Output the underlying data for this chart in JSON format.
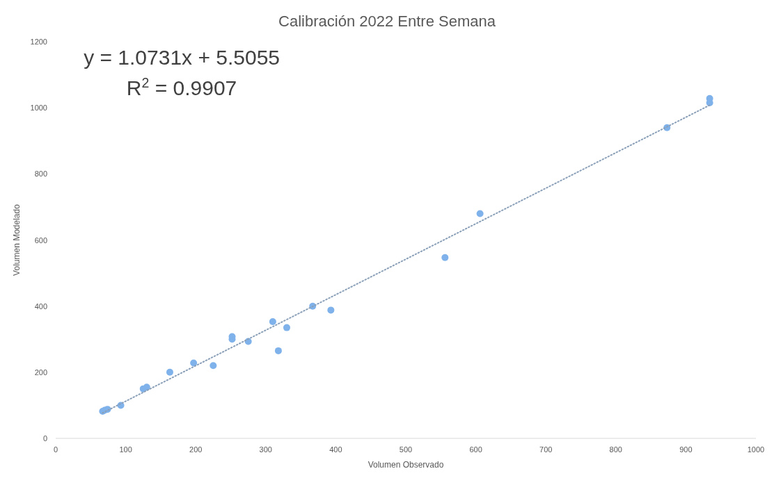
{
  "chart_data": {
    "type": "scatter",
    "title": "Calibración 2022 Entre Semana",
    "xlabel": "Volumen Observado",
    "ylabel": "Volumen Modelado",
    "xlim": [
      0,
      1000
    ],
    "xticks": [
      0,
      100,
      200,
      300,
      400,
      500,
      600,
      700,
      800,
      900,
      1000
    ],
    "ylim": [
      0,
      1200
    ],
    "yticks": [
      0,
      200,
      400,
      600,
      800,
      1000,
      1200
    ],
    "annotations": [
      "y = 1.0731x + 5.5055",
      "R$^{2}$ = 0.9907"
    ],
    "grid": false,
    "series": [
      {
        "color": "#7fb2ea",
        "marker": "circle",
        "x": [
          67,
          70,
          74,
          93,
          125,
          130,
          163,
          197,
          225,
          252,
          252,
          275,
          310,
          318,
          330,
          367,
          393,
          556,
          606,
          873,
          934,
          934
        ],
        "values": [
          82,
          85,
          88,
          100,
          150,
          155,
          200,
          228,
          220,
          300,
          308,
          293,
          353,
          265,
          335,
          400,
          388,
          547,
          680,
          940,
          1015,
          1028
        ]
      },
      {
        "type": "line",
        "color": "#8a9fb8",
        "line_style": "dotted",
        "marker": "none",
        "x": [
          67,
          934
        ],
        "values": [
          77,
          1008
        ]
      }
    ]
  }
}
